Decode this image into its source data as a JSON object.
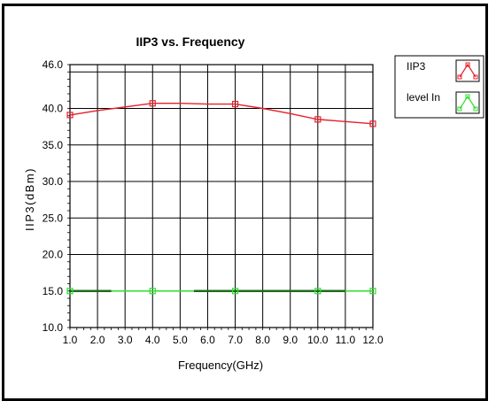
{
  "chart_data": {
    "type": "line",
    "title": "IIP3 vs. Frequency",
    "xlabel": "Frequency(GHz)",
    "ylabel": "IIP3(dBm)",
    "xlim": [
      1.0,
      12.0
    ],
    "ylim": [
      10.0,
      46.0
    ],
    "x_ticks": [
      "1.0",
      "2.0",
      "3.0",
      "4.0",
      "5.0",
      "6.0",
      "7.0",
      "8.0",
      "9.0",
      "10.0",
      "11.0",
      "12.0"
    ],
    "y_ticks": [
      "10.0",
      "15.0",
      "20.0",
      "25.0",
      "30.0",
      "35.0",
      "40.0",
      "46.0"
    ],
    "grid": true,
    "legend_position": "right",
    "series": [
      {
        "name": "IIP3",
        "color": "#e8202a",
        "x": [
          1,
          2,
          3,
          4,
          5,
          6,
          7,
          8,
          9,
          10,
          11,
          12
        ],
        "y": [
          39.1,
          39.7,
          40.2,
          40.7,
          40.7,
          40.6,
          40.6,
          40.0,
          39.3,
          38.5,
          38.2,
          37.9
        ],
        "marker_x": [
          1,
          4,
          7,
          10,
          12
        ],
        "marker_y": [
          39.1,
          40.7,
          40.6,
          38.5,
          37.9
        ]
      },
      {
        "name": "level In",
        "color": "#2ee02e",
        "x": [
          1,
          4,
          7,
          10,
          12
        ],
        "y": [
          15.0,
          15.0,
          15.0,
          15.0,
          15.0
        ],
        "marker_x": [
          1,
          4,
          7,
          10,
          12
        ],
        "marker_y": [
          15.0,
          15.0,
          15.0,
          15.0,
          15.0
        ],
        "dark_segments": [
          [
            1.0,
            2.5
          ],
          [
            5.5,
            11.0
          ]
        ],
        "dark_color": "#1e6b1e"
      }
    ]
  },
  "colors": {
    "axis": "#000000",
    "grid": "#000000",
    "background": "#ffffff"
  }
}
